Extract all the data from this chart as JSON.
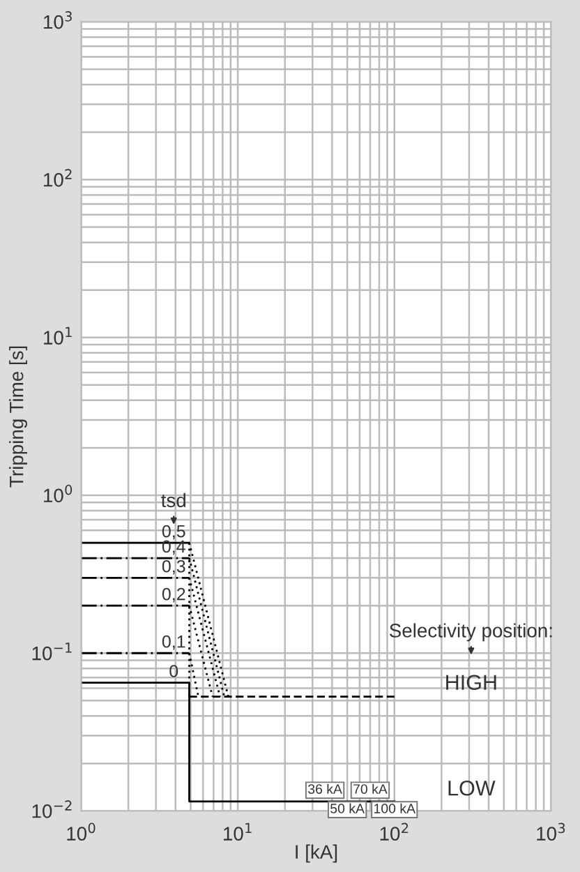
{
  "chart_data": {
    "type": "line",
    "xlabel": "I [kA]",
    "ylabel": "Tripping Time [s]",
    "log": "xy",
    "grid": true,
    "xlim": [
      1,
      1000
    ],
    "ylim": [
      0.01,
      1000
    ],
    "xticks": [
      {
        "value": 1,
        "label": "10$^{0}$"
      },
      {
        "value": 10,
        "label": "10$^{1}$"
      },
      {
        "value": 100,
        "label": "10$^{2}$"
      },
      {
        "value": 1000,
        "label": "10$^{3}$"
      }
    ],
    "yticks": [
      {
        "value": 0.01,
        "label": "10$^{−2}$"
      },
      {
        "value": 0.1,
        "label": "10$^{−1}$"
      },
      {
        "value": 1,
        "label": "10$^{0}$"
      },
      {
        "value": 10,
        "label": "10$^{1}$"
      },
      {
        "value": 100,
        "label": "10$^{2}$"
      },
      {
        "value": 1000,
        "label": "10$^{3}$"
      }
    ],
    "series": [
      {
        "color": "#000000",
        "line_style": "solid",
        "x": [
          1,
          4.9
        ],
        "values": [
          0.5,
          0.5
        ]
      },
      {
        "color": "#000000",
        "line_style": "dashdot",
        "x": [
          1,
          4.9
        ],
        "values": [
          0.4,
          0.4
        ]
      },
      {
        "color": "#000000",
        "line_style": "dashdot",
        "x": [
          1,
          4.9
        ],
        "values": [
          0.3,
          0.3
        ]
      },
      {
        "color": "#000000",
        "line_style": "dashdot",
        "x": [
          1,
          4.9
        ],
        "values": [
          0.2,
          0.2
        ]
      },
      {
        "color": "#000000",
        "line_style": "dashdot",
        "x": [
          1,
          4.9
        ],
        "values": [
          0.1,
          0.1
        ]
      },
      {
        "color": "#000000",
        "line_style": "solid",
        "x": [
          1,
          4.9,
          4.9,
          100
        ],
        "values": [
          0.065,
          0.065,
          0.0115,
          0.0115
        ]
      },
      {
        "color": "#000000",
        "line_style": "dashed",
        "x": [
          4.9,
          100
        ],
        "values": [
          0.053,
          0.053
        ]
      },
      {
        "color": "#000000",
        "line_style": "dotted",
        "x": [
          4.9,
          4.9
        ],
        "values": [
          0.5,
          0.053
        ]
      },
      {
        "color": "#000000",
        "line_style": "dotted",
        "x": [
          4.9,
          8.7
        ],
        "values": [
          0.5,
          0.053
        ]
      },
      {
        "color": "#000000",
        "line_style": "dotted",
        "x": [
          4.9,
          8.2
        ],
        "values": [
          0.4,
          0.053
        ]
      },
      {
        "color": "#000000",
        "line_style": "dotted",
        "x": [
          4.9,
          7.7
        ],
        "values": [
          0.3,
          0.053
        ]
      },
      {
        "color": "#000000",
        "line_style": "dotted",
        "x": [
          4.9,
          6.9
        ],
        "values": [
          0.2,
          0.053
        ]
      },
      {
        "color": "#000000",
        "line_style": "dotted",
        "x": [
          4.9,
          5.6
        ],
        "values": [
          0.1,
          0.053
        ]
      }
    ],
    "annotations": [
      "tsd",
      "Selectivity position:",
      "HIGH",
      "LOW",
      {
        "text": "0,5",
        "x": 3.9,
        "y": 0.5
      },
      {
        "text": "0,4",
        "x": 3.9,
        "y": 0.4
      },
      {
        "text": "0,3",
        "x": 3.9,
        "y": 0.3
      },
      {
        "text": "0,2",
        "x": 3.9,
        "y": 0.2
      },
      {
        "text": "0,1",
        "x": 3.9,
        "y": 0.1
      },
      {
        "text": "0",
        "x": 3.9,
        "y": 0.065
      },
      {
        "text": "36 kA",
        "x": 36,
        "y": 0.0115
      },
      {
        "text": "50 kA",
        "x": 50,
        "y": 0.0115
      },
      {
        "text": "70 kA",
        "x": 70,
        "y": 0.0115
      },
      {
        "text": "100 kA",
        "x": 100,
        "y": 0.0115
      }
    ]
  }
}
